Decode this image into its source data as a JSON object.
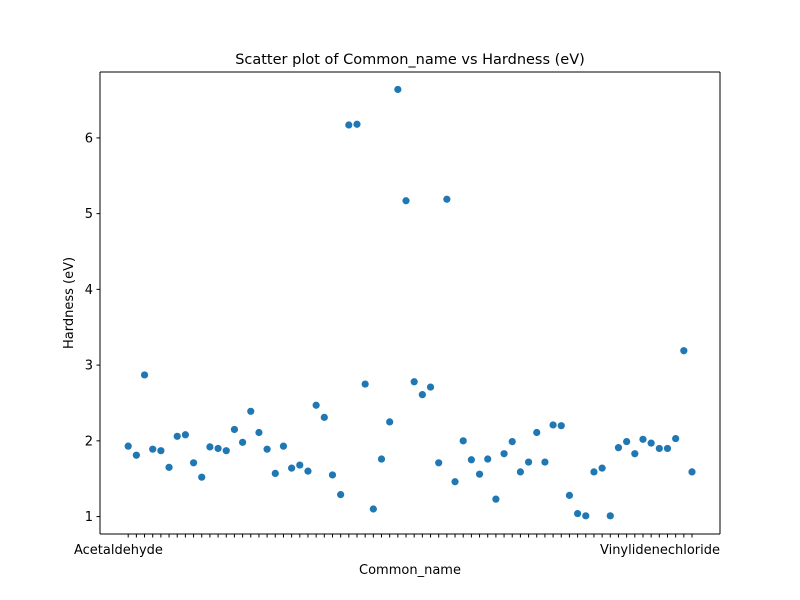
{
  "chart_data": {
    "type": "scatter",
    "title": "Scatter plot of Common_name vs Hardness  (eV)",
    "xlabel": "Common_name",
    "ylabel": "Hardness  (eV)",
    "ylim": [
      0.77,
      6.87
    ],
    "yticks": [
      "1",
      "2",
      "3",
      "4",
      "5",
      "6"
    ],
    "grid": false,
    "marker_color": "#1f77b4",
    "first_tick_label": "Acetaldehyde",
    "last_tick_label": "Vinylidenechloride",
    "values": [
      1.93,
      1.81,
      2.87,
      1.89,
      1.87,
      1.65,
      2.06,
      2.08,
      1.71,
      1.52,
      1.92,
      1.9,
      1.87,
      2.15,
      1.98,
      2.39,
      2.11,
      1.89,
      1.57,
      1.93,
      1.64,
      1.68,
      1.6,
      2.47,
      2.31,
      1.55,
      1.29,
      6.17,
      6.18,
      2.75,
      1.1,
      1.76,
      2.25,
      6.64,
      5.17,
      2.78,
      2.61,
      2.71,
      1.71,
      5.19,
      1.46,
      2.0,
      1.75,
      1.56,
      1.76,
      1.23,
      1.83,
      1.99,
      1.59,
      1.72,
      2.11,
      1.72,
      2.21,
      2.2,
      1.28,
      1.04,
      1.01,
      1.59,
      1.64,
      1.01,
      1.91,
      1.99,
      1.83,
      2.02,
      1.97,
      1.9,
      1.9,
      2.03,
      3.19,
      1.59
    ]
  }
}
